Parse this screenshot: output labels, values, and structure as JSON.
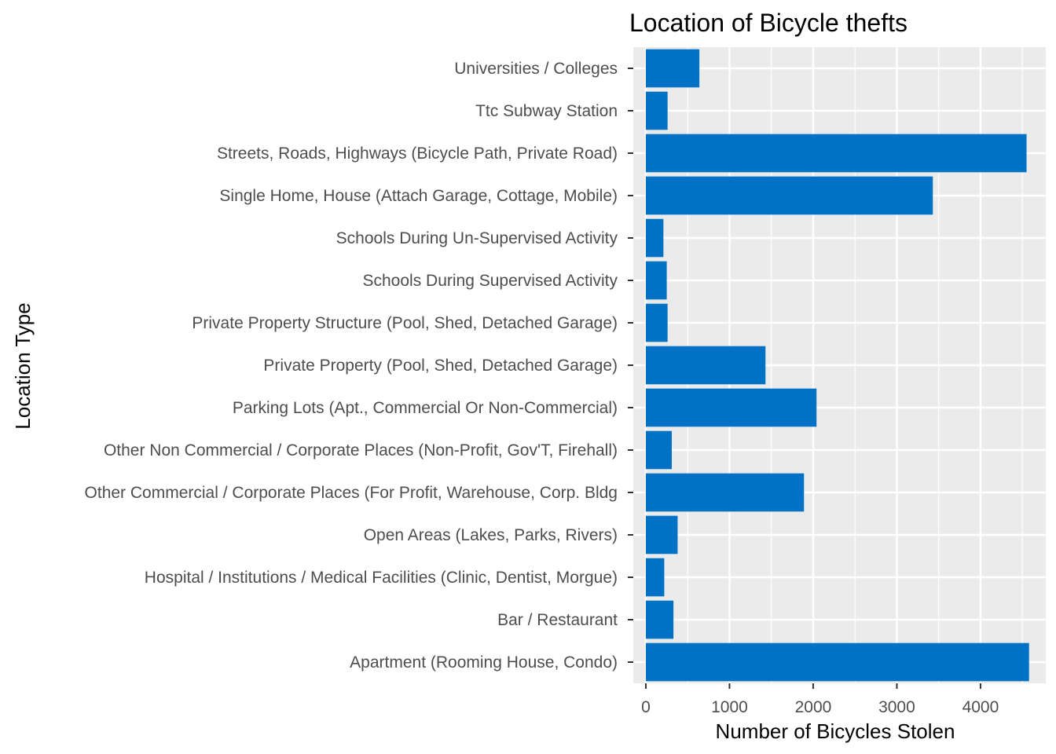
{
  "chart_data": {
    "type": "bar",
    "orientation": "horizontal",
    "title": "Location of Bicycle thefts",
    "xlabel": "Number of Bicycles Stolen",
    "ylabel": "Location Type",
    "xlim": [
      -150,
      4780
    ],
    "x_ticks": [
      0,
      1000,
      2000,
      3000,
      4000
    ],
    "grid": true,
    "bar_color": "#0072C6",
    "panel_background": "#EBEBEB",
    "categories": [
      "Universities / Colleges",
      "Ttc Subway Station",
      "Streets, Roads, Highways (Bicycle Path, Private Road)",
      "Single Home, House (Attach Garage, Cottage, Mobile)",
      "Schools During Un-Supervised Activity",
      "Schools During Supervised Activity",
      "Private Property Structure (Pool, Shed, Detached Garage)",
      "Private Property (Pool, Shed, Detached Garage)",
      "Parking Lots (Apt., Commercial Or Non-Commercial)",
      "Other Non Commercial / Corporate Places (Non-Profit, Gov'T, Firehall)",
      "Other Commercial / Corporate Places (For Profit, Warehouse, Corp. Bldg",
      "Open Areas (Lakes, Parks, Rivers)",
      "Hospital / Institutions / Medical Facilities (Clinic, Dentist, Morgue)",
      "Bar / Restaurant",
      "Apartment (Rooming House, Condo)"
    ],
    "values": [
      640,
      260,
      4550,
      3430,
      210,
      250,
      260,
      1430,
      2040,
      310,
      1890,
      380,
      220,
      330,
      4580
    ]
  }
}
